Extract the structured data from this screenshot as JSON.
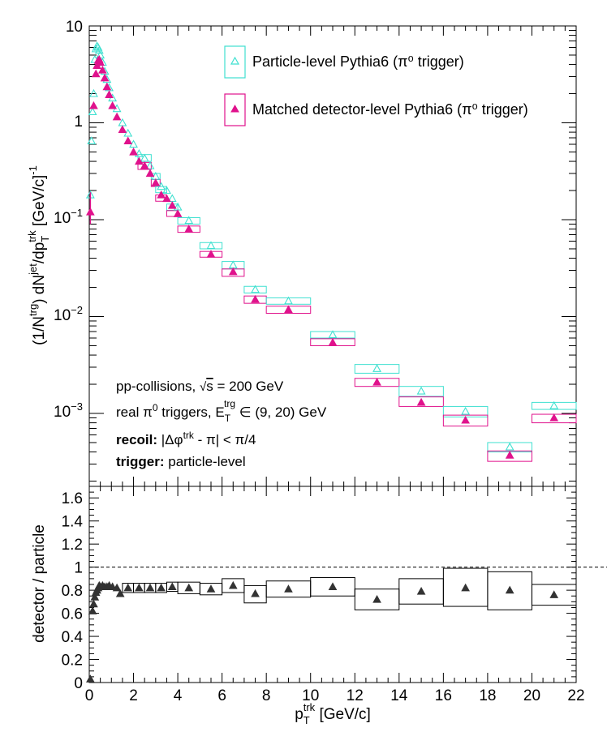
{
  "colors": {
    "particle": "#3fe0d0",
    "detector": "#e0128c",
    "ratio": "#333333",
    "frame": "#000000"
  },
  "legend": {
    "particle": "Particle-level Pythia6 (π⁰ trigger)",
    "detector": "Matched detector-level Pythia6 (π⁰ trigger)"
  },
  "annotations": {
    "line1": "pp-collisions, √s = 200 GeV",
    "line2": "real π⁰ triggers, E_T^trg ∈ (9, 20) GeV",
    "line3_bold": "recoil:",
    "line3_rest": "|Δφ^trk - π| < π/4",
    "line4_bold": "trigger:",
    "line4_rest": "particle-level"
  },
  "chart_data": [
    {
      "type": "scatter",
      "name": "spectrum",
      "log_y": true,
      "xlim": [
        0,
        22
      ],
      "ylim": [
        0.0002,
        10
      ],
      "x_ticks": [
        0,
        2,
        4,
        6,
        8,
        10,
        12,
        14,
        16,
        18,
        20,
        22
      ],
      "y_tick_labels": [
        "10",
        "1",
        "10^-1",
        "10^-2",
        "10^-3"
      ],
      "ylabel": "(1/N^trg) dN^jet/dp_T^trk [GeV/c]^-1",
      "series": [
        {
          "name": "Particle-level Pythia6 (π⁰ trigger)",
          "marker": "open-triangle",
          "points": [
            {
              "x": 0.05,
              "y": 0.18
            },
            {
              "x": 0.1,
              "y": 0.65
            },
            {
              "x": 0.15,
              "y": 1.3
            },
            {
              "x": 0.2,
              "y": 2.0
            },
            {
              "x": 0.25,
              "y": 4.5
            },
            {
              "x": 0.3,
              "y": 5.8
            },
            {
              "x": 0.35,
              "y": 6.2
            },
            {
              "x": 0.4,
              "y": 6.0
            },
            {
              "x": 0.45,
              "y": 5.6
            },
            {
              "x": 0.5,
              "y": 5.0
            },
            {
              "x": 0.6,
              "y": 4.2
            },
            {
              "x": 0.7,
              "y": 3.4
            },
            {
              "x": 0.8,
              "y": 2.8
            },
            {
              "x": 0.9,
              "y": 2.3
            },
            {
              "x": 1.05,
              "y": 1.8
            },
            {
              "x": 1.25,
              "y": 1.4
            },
            {
              "x": 1.5,
              "y": 1.0
            },
            {
              "x": 1.75,
              "y": 0.78
            },
            {
              "x": 2.0,
              "y": 0.6
            },
            {
              "x": 2.25,
              "y": 0.48
            },
            {
              "x": 2.5,
              "y": 0.43
            },
            {
              "x": 2.75,
              "y": 0.36
            },
            {
              "x": 3.0,
              "y": 0.28
            },
            {
              "x": 3.25,
              "y": 0.22
            },
            {
              "x": 3.5,
              "y": 0.2
            },
            {
              "x": 3.75,
              "y": 0.165
            },
            {
              "x": 4.0,
              "y": 0.135
            },
            {
              "x": 4.5,
              "y": 0.098
            },
            {
              "x": 5.5,
              "y": 0.054
            },
            {
              "x": 6.5,
              "y": 0.034
            },
            {
              "x": 7.5,
              "y": 0.019
            },
            {
              "x": 9.0,
              "y": 0.0145
            },
            {
              "x": 11.0,
              "y": 0.0065
            },
            {
              "x": 13.0,
              "y": 0.0029
            },
            {
              "x": 15.0,
              "y": 0.0017
            },
            {
              "x": 17.0,
              "y": 0.00105
            },
            {
              "x": 19.0,
              "y": 0.00045
            },
            {
              "x": 21.0,
              "y": 0.0012
            }
          ]
        },
        {
          "name": "Matched detector-level Pythia6 (π⁰ trigger)",
          "marker": "filled-triangle",
          "points": [
            {
              "x": 0.05,
              "y": 0.12
            },
            {
              "x": 0.2,
              "y": 1.5
            },
            {
              "x": 0.3,
              "y": 3.2
            },
            {
              "x": 0.35,
              "y": 3.9
            },
            {
              "x": 0.4,
              "y": 4.4
            },
            {
              "x": 0.45,
              "y": 4.5
            },
            {
              "x": 0.5,
              "y": 4.2
            },
            {
              "x": 0.6,
              "y": 3.5
            },
            {
              "x": 0.7,
              "y": 2.9
            },
            {
              "x": 0.8,
              "y": 2.35
            },
            {
              "x": 0.9,
              "y": 1.95
            },
            {
              "x": 1.05,
              "y": 1.5
            },
            {
              "x": 1.25,
              "y": 1.15
            },
            {
              "x": 1.5,
              "y": 0.85
            },
            {
              "x": 1.75,
              "y": 0.65
            },
            {
              "x": 2.0,
              "y": 0.5
            },
            {
              "x": 2.25,
              "y": 0.4
            },
            {
              "x": 2.5,
              "y": 0.36
            },
            {
              "x": 2.75,
              "y": 0.3
            },
            {
              "x": 3.0,
              "y": 0.24
            },
            {
              "x": 3.25,
              "y": 0.18
            },
            {
              "x": 3.5,
              "y": 0.165
            },
            {
              "x": 3.75,
              "y": 0.14
            },
            {
              "x": 4.0,
              "y": 0.115
            },
            {
              "x": 4.5,
              "y": 0.08
            },
            {
              "x": 5.5,
              "y": 0.044
            },
            {
              "x": 6.5,
              "y": 0.029
            },
            {
              "x": 7.5,
              "y": 0.015
            },
            {
              "x": 9.0,
              "y": 0.0118
            },
            {
              "x": 11.0,
              "y": 0.0054
            },
            {
              "x": 13.0,
              "y": 0.0021
            },
            {
              "x": 15.0,
              "y": 0.0013
            },
            {
              "x": 17.0,
              "y": 0.00085
            },
            {
              "x": 19.0,
              "y": 0.00037
            },
            {
              "x": 21.0,
              "y": 0.0009
            }
          ]
        }
      ],
      "boxes": [
        {
          "x0": 2.2,
          "x1": 2.8,
          "particle": [
            0.4,
            0.47
          ],
          "detector": [
            0.33,
            0.39
          ]
        },
        {
          "x0": 2.8,
          "x1": 3.2,
          "particle": [
            0.26,
            0.3
          ],
          "detector": [
            0.22,
            0.26
          ]
        },
        {
          "x0": 3.0,
          "x1": 3.5,
          "particle": [
            0.19,
            0.22
          ],
          "detector": [
            0.155,
            0.18
          ]
        },
        {
          "x0": 3.5,
          "x1": 4.0,
          "particle": [
            0.125,
            0.145
          ],
          "detector": [
            0.108,
            0.124
          ]
        },
        {
          "x0": 4.0,
          "x1": 5.0,
          "particle": [
            0.09,
            0.105
          ],
          "detector": [
            0.074,
            0.086
          ]
        },
        {
          "x0": 5.0,
          "x1": 6.0,
          "particle": [
            0.05,
            0.058
          ],
          "detector": [
            0.041,
            0.047
          ]
        },
        {
          "x0": 6.0,
          "x1": 7.0,
          "particle": [
            0.031,
            0.037
          ],
          "detector": [
            0.026,
            0.031
          ]
        },
        {
          "x0": 7.0,
          "x1": 8.0,
          "particle": [
            0.0175,
            0.0205
          ],
          "detector": [
            0.0137,
            0.0163
          ]
        },
        {
          "x0": 8.0,
          "x1": 10.0,
          "particle": [
            0.0134,
            0.0156
          ],
          "detector": [
            0.0108,
            0.0128
          ]
        },
        {
          "x0": 10.0,
          "x1": 12.0,
          "particle": [
            0.006,
            0.007
          ],
          "detector": [
            0.005,
            0.0059
          ]
        },
        {
          "x0": 12.0,
          "x1": 14.0,
          "particle": [
            0.0026,
            0.0032
          ],
          "detector": [
            0.0019,
            0.0023
          ]
        },
        {
          "x0": 14.0,
          "x1": 16.0,
          "particle": [
            0.0015,
            0.0019
          ],
          "detector": [
            0.00118,
            0.00148
          ]
        },
        {
          "x0": 16.0,
          "x1": 18.0,
          "particle": [
            0.00092,
            0.00118
          ],
          "detector": [
            0.00074,
            0.00096
          ]
        },
        {
          "x0": 18.0,
          "x1": 20.0,
          "particle": [
            0.0004,
            0.0005
          ],
          "detector": [
            0.00032,
            0.00041
          ]
        },
        {
          "x0": 20.0,
          "x1": 22.0,
          "particle": [
            0.0011,
            0.0013
          ],
          "detector": [
            0.0008,
            0.00098
          ]
        }
      ]
    },
    {
      "type": "scatter",
      "name": "ratio",
      "xlim": [
        0,
        22
      ],
      "ylim": [
        0,
        1.7
      ],
      "x_ticks": [
        0,
        2,
        4,
        6,
        8,
        10,
        12,
        14,
        16,
        18,
        20,
        22
      ],
      "y_ticks": [
        0,
        0.2,
        0.4,
        0.6,
        0.8,
        1,
        1.2,
        1.4,
        1.6
      ],
      "reference_line": 1,
      "xlabel": "p_T^trk [GeV/c]",
      "ylabel": "detector / particle",
      "points": [
        {
          "x": 0.05,
          "y": 0.03
        },
        {
          "x": 0.15,
          "y": 0.62
        },
        {
          "x": 0.2,
          "y": 0.68
        },
        {
          "x": 0.25,
          "y": 0.74
        },
        {
          "x": 0.3,
          "y": 0.78
        },
        {
          "x": 0.35,
          "y": 0.8
        },
        {
          "x": 0.4,
          "y": 0.82
        },
        {
          "x": 0.45,
          "y": 0.84
        },
        {
          "x": 0.5,
          "y": 0.83
        },
        {
          "x": 0.6,
          "y": 0.84
        },
        {
          "x": 0.7,
          "y": 0.83
        },
        {
          "x": 0.8,
          "y": 0.83
        },
        {
          "x": 0.9,
          "y": 0.84
        },
        {
          "x": 1.05,
          "y": 0.83
        },
        {
          "x": 1.25,
          "y": 0.82
        },
        {
          "x": 1.4,
          "y": 0.77
        },
        {
          "x": 1.75,
          "y": 0.82
        },
        {
          "x": 2.25,
          "y": 0.82
        },
        {
          "x": 2.75,
          "y": 0.82
        },
        {
          "x": 3.25,
          "y": 0.82
        },
        {
          "x": 3.75,
          "y": 0.83
        },
        {
          "x": 4.5,
          "y": 0.82
        },
        {
          "x": 5.5,
          "y": 0.81
        },
        {
          "x": 6.5,
          "y": 0.84
        },
        {
          "x": 7.5,
          "y": 0.77
        },
        {
          "x": 9.0,
          "y": 0.81
        },
        {
          "x": 11.0,
          "y": 0.83
        },
        {
          "x": 13.0,
          "y": 0.72
        },
        {
          "x": 15.0,
          "y": 0.79
        },
        {
          "x": 17.0,
          "y": 0.82
        },
        {
          "x": 19.0,
          "y": 0.8
        },
        {
          "x": 21.0,
          "y": 0.76
        }
      ],
      "boxes": [
        {
          "x0": 1.5,
          "x1": 2.0,
          "y0": 0.78,
          "y1": 0.86
        },
        {
          "x0": 2.0,
          "x1": 2.5,
          "y0": 0.78,
          "y1": 0.86
        },
        {
          "x0": 2.5,
          "x1": 3.0,
          "y0": 0.78,
          "y1": 0.86
        },
        {
          "x0": 3.0,
          "x1": 3.5,
          "y0": 0.78,
          "y1": 0.86
        },
        {
          "x0": 3.5,
          "x1": 4.0,
          "y0": 0.79,
          "y1": 0.87
        },
        {
          "x0": 4.0,
          "x1": 5.0,
          "y0": 0.77,
          "y1": 0.87
        },
        {
          "x0": 5.0,
          "x1": 6.0,
          "y0": 0.76,
          "y1": 0.86
        },
        {
          "x0": 6.0,
          "x1": 7.0,
          "y0": 0.78,
          "y1": 0.9
        },
        {
          "x0": 7.0,
          "x1": 8.0,
          "y0": 0.69,
          "y1": 0.84
        },
        {
          "x0": 8.0,
          "x1": 10.0,
          "y0": 0.74,
          "y1": 0.88
        },
        {
          "x0": 10.0,
          "x1": 12.0,
          "y0": 0.75,
          "y1": 0.91
        },
        {
          "x0": 12.0,
          "x1": 14.0,
          "y0": 0.63,
          "y1": 0.81
        },
        {
          "x0": 14.0,
          "x1": 16.0,
          "y0": 0.68,
          "y1": 0.9
        },
        {
          "x0": 16.0,
          "x1": 18.0,
          "y0": 0.66,
          "y1": 0.99
        },
        {
          "x0": 18.0,
          "x1": 20.0,
          "y0": 0.63,
          "y1": 0.96
        },
        {
          "x0": 20.0,
          "x1": 22.0,
          "y0": 0.67,
          "y1": 0.85
        }
      ]
    }
  ]
}
